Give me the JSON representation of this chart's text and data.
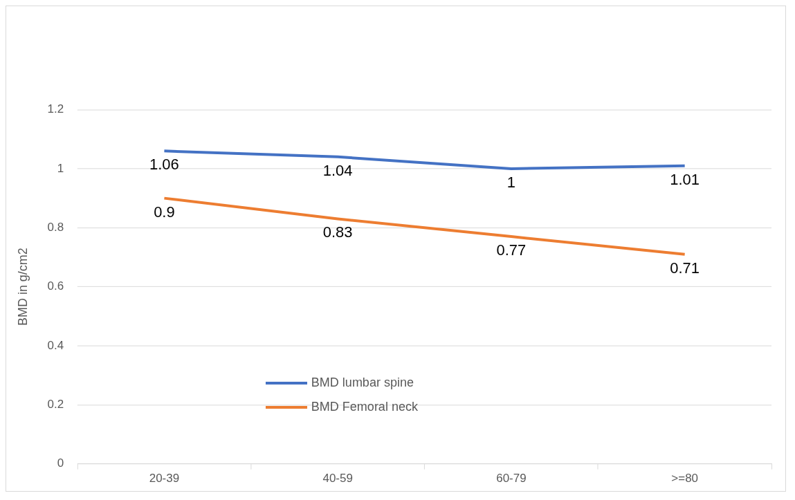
{
  "chart_data": {
    "type": "line",
    "ylabel": "BMD in g/cm2",
    "categories": [
      "20-39",
      "40-59",
      "60-79",
      ">=80"
    ],
    "series": [
      {
        "name": "BMD lumbar spine",
        "color": "#4472c4",
        "values": [
          1.06,
          1.04,
          1,
          1.01
        ]
      },
      {
        "name": "BMD Femoral neck",
        "color": "#ed7d31",
        "values": [
          0.9,
          0.83,
          0.77,
          0.71
        ]
      }
    ],
    "ylim": [
      0,
      1.2
    ],
    "yticks": [
      0,
      0.2,
      0.4,
      0.6,
      0.8,
      1,
      1.2
    ],
    "grid": "y",
    "legend": "bottom",
    "data_labels": true,
    "marker": "none",
    "line_style": "solid"
  }
}
